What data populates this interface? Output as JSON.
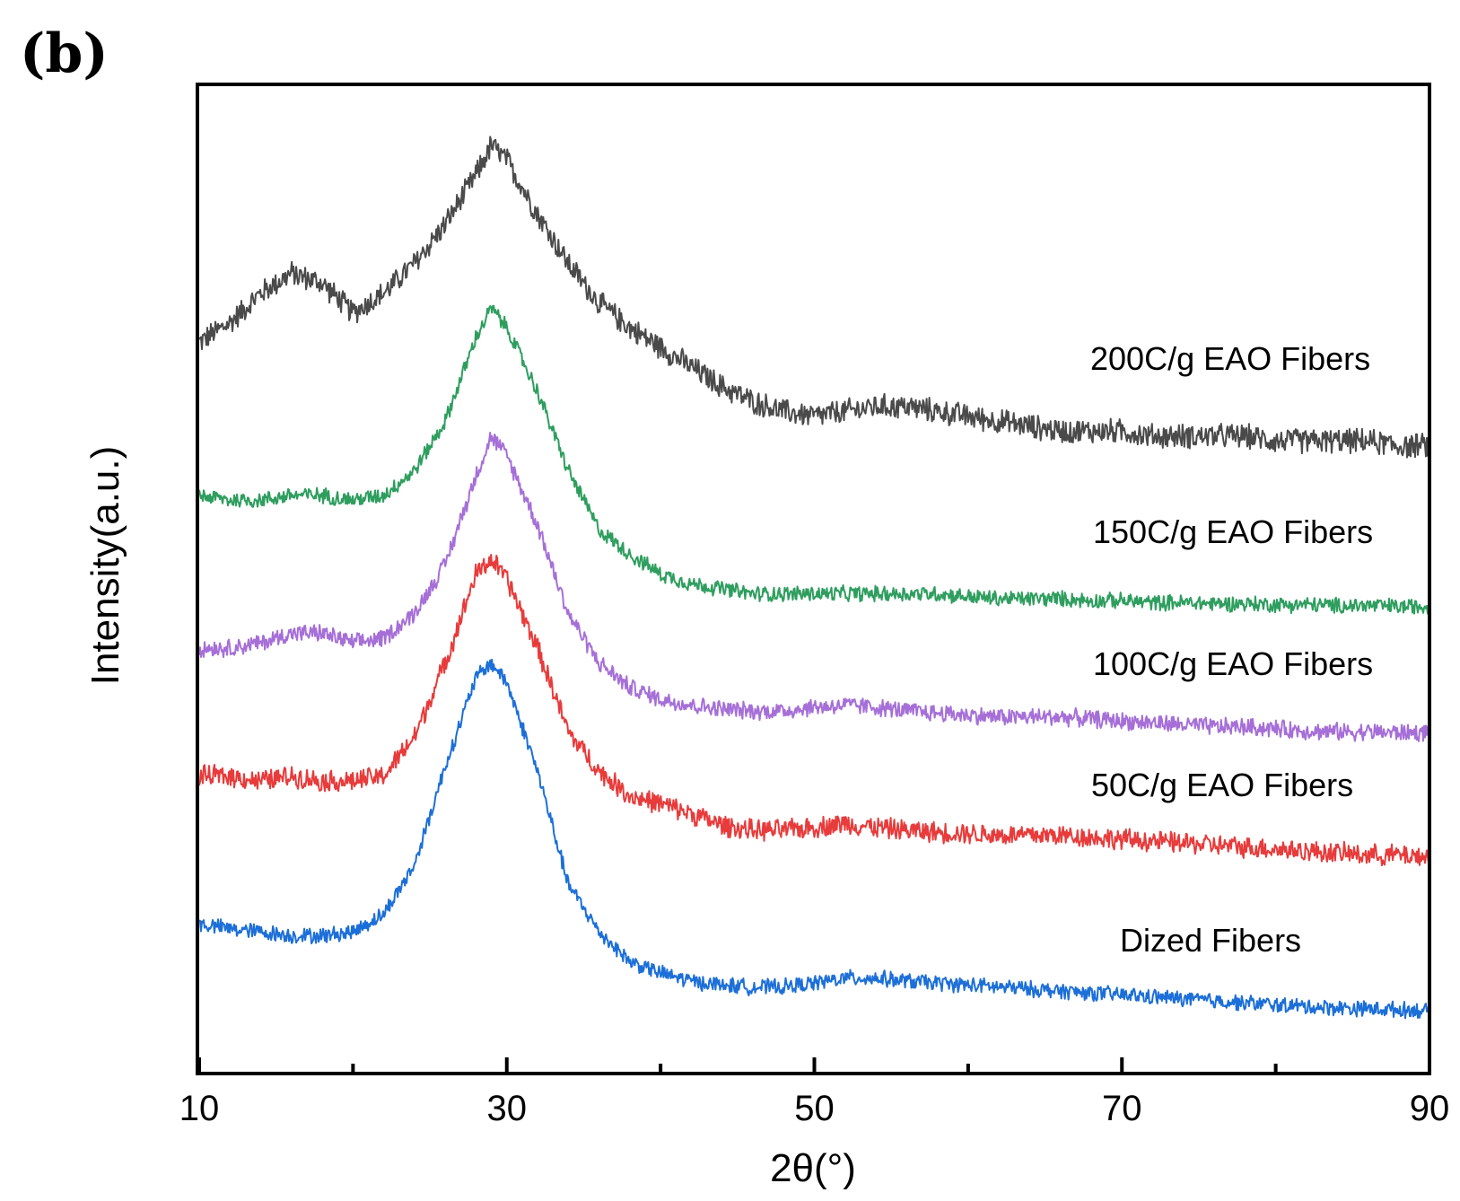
{
  "panel_label": "(b)",
  "chart_data": {
    "type": "line",
    "title": "",
    "xlabel": "2θ(°)",
    "ylabel": "Intensity(a.u.)",
    "xlim": [
      10,
      90
    ],
    "ylim": [
      0,
      10
    ],
    "xticks": [
      10,
      30,
      50,
      70,
      90
    ],
    "xticks_minor": [
      20,
      40,
      60,
      80
    ],
    "yticks_shown": false,
    "grid": false,
    "legend": "none; series labelled inline at right",
    "note": "Traces are vertically offset XRD patterns with noise; values are approximate relative intensities sampled every 2 degrees.",
    "x": [
      10,
      12,
      14,
      16,
      18,
      20,
      22,
      24,
      26,
      28,
      29,
      30,
      32,
      34,
      36,
      38,
      40,
      42,
      44,
      46,
      48,
      50,
      52,
      54,
      56,
      58,
      60,
      62,
      64,
      66,
      68,
      70,
      72,
      74,
      76,
      78,
      80,
      82,
      84,
      86,
      88,
      90
    ],
    "series": [
      {
        "name": "200C/g EAO Fibers",
        "label": "200C/g EAO Fibers",
        "color": "#4a4a4a",
        "noise": 0.14,
        "values": [
          7.4,
          7.6,
          7.9,
          8.1,
          8.0,
          7.7,
          7.9,
          8.2,
          8.6,
          9.1,
          9.4,
          9.25,
          8.7,
          8.2,
          7.8,
          7.55,
          7.35,
          7.15,
          6.95,
          6.8,
          6.7,
          6.65,
          6.7,
          6.75,
          6.75,
          6.7,
          6.65,
          6.6,
          6.55,
          6.5,
          6.5,
          6.5,
          6.45,
          6.45,
          6.45,
          6.45,
          6.4,
          6.4,
          6.4,
          6.4,
          6.35,
          6.35
        ]
      },
      {
        "name": "150C/g EAO Fibers",
        "label": "150C/g EAO Fibers",
        "color": "#2e9e5e",
        "noise": 0.09,
        "values": [
          5.85,
          5.8,
          5.8,
          5.85,
          5.85,
          5.8,
          5.85,
          6.1,
          6.6,
          7.45,
          7.75,
          7.55,
          6.9,
          6.1,
          5.5,
          5.25,
          5.05,
          4.95,
          4.9,
          4.85,
          4.85,
          4.85,
          4.85,
          4.85,
          4.85,
          4.85,
          4.82,
          4.8,
          4.8,
          4.8,
          4.78,
          4.78,
          4.76,
          4.76,
          4.75,
          4.75,
          4.74,
          4.74,
          4.73,
          4.73,
          4.72,
          4.72
        ]
      },
      {
        "name": "100C/g EAO Fibers",
        "label": "100C/g EAO Fibers",
        "color": "#a66fd8",
        "noise": 0.1,
        "values": [
          4.3,
          4.3,
          4.35,
          4.45,
          4.45,
          4.35,
          4.4,
          4.65,
          5.15,
          6.05,
          6.45,
          6.25,
          5.55,
          4.65,
          4.15,
          3.9,
          3.78,
          3.72,
          3.68,
          3.66,
          3.66,
          3.7,
          3.72,
          3.7,
          3.66,
          3.64,
          3.62,
          3.6,
          3.6,
          3.6,
          3.58,
          3.56,
          3.54,
          3.52,
          3.5,
          3.5,
          3.48,
          3.46,
          3.45,
          3.45,
          3.44,
          3.44
        ]
      },
      {
        "name": "50C/g EAO Fibers",
        "label": "50C/g EAO Fibers",
        "color": "#e83b3b",
        "noise": 0.12,
        "values": [
          3.0,
          3.0,
          2.95,
          3.0,
          2.95,
          2.95,
          3.0,
          3.4,
          4.15,
          5.05,
          5.2,
          5.0,
          4.3,
          3.45,
          3.05,
          2.8,
          2.72,
          2.62,
          2.5,
          2.45,
          2.45,
          2.48,
          2.52,
          2.48,
          2.45,
          2.43,
          2.42,
          2.4,
          2.4,
          2.4,
          2.38,
          2.36,
          2.34,
          2.32,
          2.3,
          2.28,
          2.26,
          2.24,
          2.22,
          2.2,
          2.2,
          2.18
        ]
      },
      {
        "name": "Dized Fibers",
        "label": "Dized Fibers",
        "color": "#1c6fd8",
        "noise": 0.09,
        "values": [
          1.5,
          1.45,
          1.42,
          1.38,
          1.38,
          1.42,
          1.6,
          2.1,
          3.1,
          4.0,
          4.15,
          3.95,
          3.05,
          1.9,
          1.42,
          1.12,
          1.0,
          0.92,
          0.88,
          0.86,
          0.86,
          0.9,
          0.95,
          0.95,
          0.92,
          0.9,
          0.88,
          0.86,
          0.84,
          0.82,
          0.8,
          0.78,
          0.76,
          0.74,
          0.72,
          0.7,
          0.68,
          0.66,
          0.65,
          0.64,
          0.63,
          0.62
        ]
      }
    ]
  }
}
